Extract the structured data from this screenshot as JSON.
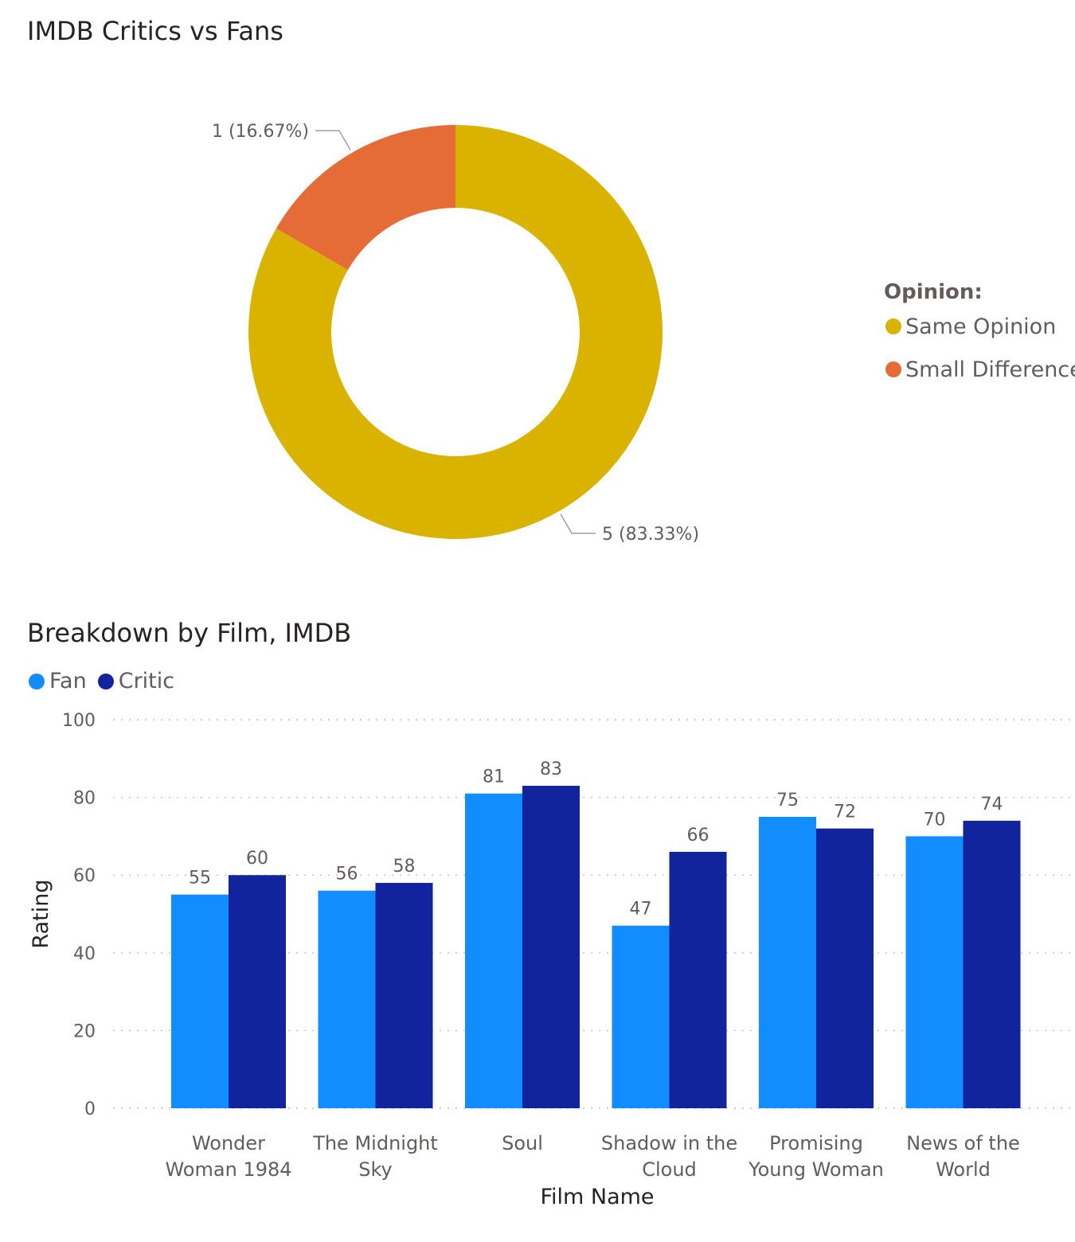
{
  "chart_data": [
    {
      "type": "pie",
      "title": "IMDB Critics vs Fans",
      "legend_title": "Opinion:",
      "legend_position": "right",
      "slices": [
        {
          "name": "Same Opinion",
          "value": 5,
          "label": "5 (83.33%)",
          "color": "#D9B300"
        },
        {
          "name": "Small Difference",
          "value": 1,
          "label": "1 (16.67%)",
          "color": "#E66C37"
        }
      ]
    },
    {
      "type": "bar",
      "title": "Breakdown by Film, IMDB",
      "xlabel": "Film Name",
      "ylabel": "Rating",
      "ylim": [
        0,
        100
      ],
      "yticks": [
        "0",
        "20",
        "40",
        "60",
        "80",
        "100"
      ],
      "grid": true,
      "legend_position": "top-left",
      "categories": [
        [
          "Wonder",
          "Woman 1984"
        ],
        [
          "The Midnight",
          "Sky"
        ],
        [
          "Soul"
        ],
        [
          "Shadow in the",
          "Cloud"
        ],
        [
          "Promising",
          "Young Woman"
        ],
        [
          "News of the",
          "World"
        ]
      ],
      "series": [
        {
          "name": "Fan",
          "color": "#118DFF",
          "values": [
            55,
            56,
            81,
            47,
            75,
            70
          ]
        },
        {
          "name": "Critic",
          "color": "#12239E",
          "values": [
            60,
            58,
            83,
            66,
            72,
            74
          ]
        }
      ]
    }
  ]
}
